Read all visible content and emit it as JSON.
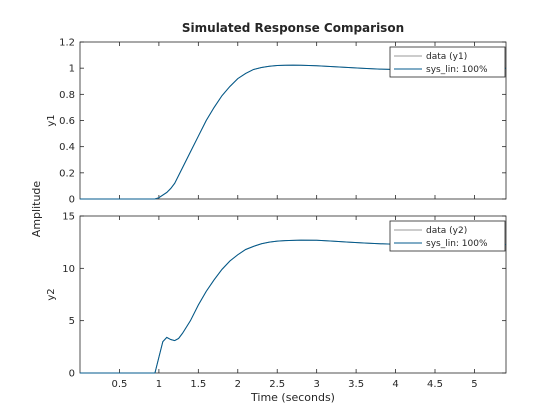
{
  "figure": {
    "title": "Simulated Response Comparison",
    "xlabel": "Time (seconds)",
    "shared_ylabel": "Amplitude"
  },
  "colors": {
    "data": "#9a9a9a",
    "model": "#005a8c",
    "axes": "#262626",
    "background": "#ffffff"
  },
  "chart_data": [
    {
      "type": "line",
      "ylabel": "y1",
      "xlim": [
        0.0,
        5.4
      ],
      "ylim": [
        0,
        1.2
      ],
      "xticks": [
        0.5,
        1,
        1.5,
        2,
        2.5,
        3,
        3.5,
        4,
        4.5,
        5
      ],
      "xtick_labels": [],
      "yticks": [
        0,
        0.2,
        0.4,
        0.6,
        0.8,
        1,
        1.2
      ],
      "ytick_labels": [
        "0",
        "0.2",
        "0.4",
        "0.6",
        "0.8",
        "1",
        "1.2"
      ],
      "legend": {
        "placement": "top-right"
      },
      "x": [
        0,
        0.5,
        0.95,
        1.0,
        1.05,
        1.1,
        1.15,
        1.2,
        1.3,
        1.4,
        1.5,
        1.6,
        1.7,
        1.8,
        1.9,
        2.0,
        2.1,
        2.2,
        2.3,
        2.4,
        2.5,
        2.6,
        2.7,
        2.8,
        2.9,
        3.0,
        3.2,
        3.4,
        3.6,
        3.8,
        4.0,
        4.2,
        4.4,
        4.6,
        4.8,
        5.0,
        5.2,
        5.4
      ],
      "series": [
        {
          "name": "data (y1)",
          "values": [
            0,
            0,
            0,
            0.01,
            0.03,
            0.05,
            0.08,
            0.12,
            0.24,
            0.36,
            0.48,
            0.6,
            0.7,
            0.79,
            0.86,
            0.92,
            0.96,
            0.99,
            1.005,
            1.015,
            1.02,
            1.022,
            1.023,
            1.022,
            1.02,
            1.018,
            1.012,
            1.005,
            0.998,
            0.993,
            0.99,
            0.988,
            0.988,
            0.99,
            0.992,
            0.994,
            0.996,
            0.997
          ]
        },
        {
          "name": "sys_lin: 100%",
          "values": [
            0,
            0,
            0,
            0.01,
            0.03,
            0.05,
            0.08,
            0.12,
            0.24,
            0.36,
            0.48,
            0.6,
            0.7,
            0.79,
            0.86,
            0.92,
            0.96,
            0.99,
            1.005,
            1.015,
            1.02,
            1.022,
            1.023,
            1.022,
            1.02,
            1.018,
            1.012,
            1.005,
            0.998,
            0.993,
            0.99,
            0.988,
            0.988,
            0.99,
            0.992,
            0.994,
            0.996,
            0.997
          ]
        }
      ]
    },
    {
      "type": "line",
      "ylabel": "y2",
      "xlim": [
        0.0,
        5.4
      ],
      "ylim": [
        0,
        15
      ],
      "xticks": [
        0.5,
        1,
        1.5,
        2,
        2.5,
        3,
        3.5,
        4,
        4.5,
        5
      ],
      "xtick_labels": [
        "0.5",
        "1",
        "1.5",
        "2",
        "2.5",
        "3",
        "3.5",
        "4",
        "4.5",
        "5"
      ],
      "yticks": [
        0,
        5,
        10,
        15
      ],
      "ytick_labels": [
        "0",
        "5",
        "10",
        "15"
      ],
      "legend": {
        "placement": "top-right"
      },
      "x": [
        0,
        0.5,
        0.95,
        1.0,
        1.05,
        1.1,
        1.15,
        1.2,
        1.25,
        1.3,
        1.4,
        1.5,
        1.6,
        1.7,
        1.8,
        1.9,
        2.0,
        2.1,
        2.2,
        2.3,
        2.4,
        2.5,
        2.6,
        2.8,
        3.0,
        3.2,
        3.4,
        3.6,
        3.8,
        4.0,
        4.2,
        4.4,
        4.6,
        4.8,
        5.0,
        5.2,
        5.4
      ],
      "series": [
        {
          "name": "data (y2)",
          "values": [
            0,
            0,
            0,
            1.5,
            3.0,
            3.4,
            3.2,
            3.1,
            3.3,
            3.8,
            5.0,
            6.5,
            7.8,
            8.9,
            9.9,
            10.7,
            11.3,
            11.8,
            12.1,
            12.35,
            12.5,
            12.6,
            12.65,
            12.7,
            12.68,
            12.6,
            12.5,
            12.42,
            12.35,
            12.3,
            12.27,
            12.25,
            12.24,
            12.24,
            12.25,
            12.26,
            12.27
          ]
        },
        {
          "name": "sys_lin: 100%",
          "values": [
            0,
            0,
            0,
            1.5,
            3.0,
            3.4,
            3.2,
            3.1,
            3.3,
            3.8,
            5.0,
            6.5,
            7.8,
            8.9,
            9.9,
            10.7,
            11.3,
            11.8,
            12.1,
            12.35,
            12.5,
            12.6,
            12.65,
            12.7,
            12.68,
            12.6,
            12.5,
            12.42,
            12.35,
            12.3,
            12.27,
            12.25,
            12.24,
            12.24,
            12.25,
            12.26,
            12.27
          ]
        }
      ]
    }
  ]
}
